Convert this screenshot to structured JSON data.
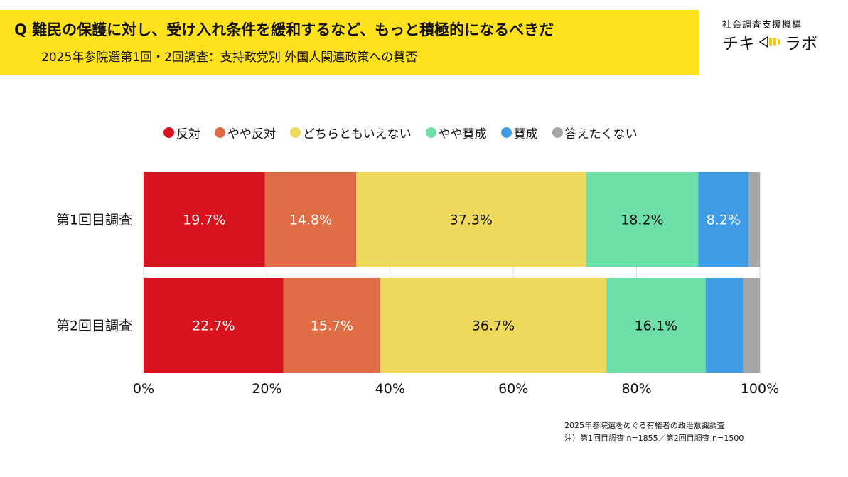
{
  "header": {
    "question": "Q 難民の保護に対し、受け入れ条件を緩和するなど、もっと積極的になるべきだ",
    "subtitle": "2025年参院選第1回・2回調査：支持政党別 外国人関連政策への賛否",
    "org_name": "社会調査支援機構",
    "logo_left": "チキ",
    "logo_right": "ラボ"
  },
  "chart_data": {
    "type": "bar",
    "orientation": "horizontal",
    "stacked": "percent",
    "categories": [
      "第1回目調査",
      "第2回目調査"
    ],
    "series": [
      {
        "name": "反対",
        "color": "#D7141E",
        "values": [
          19.7,
          22.7
        ]
      },
      {
        "name": "やや反対",
        "color": "#DE6C44",
        "values": [
          14.8,
          15.7
        ]
      },
      {
        "name": "どちらともいえない",
        "color": "#EED95C",
        "values": [
          37.3,
          36.7
        ]
      },
      {
        "name": "やや賛成",
        "color": "#6EDFA9",
        "values": [
          18.2,
          16.1
        ]
      },
      {
        "name": "賛成",
        "color": "#3F9BE3",
        "values": [
          8.2,
          6.1
        ]
      },
      {
        "name": "答えたくない",
        "color": "#A6A6A6",
        "values": [
          1.8,
          2.7
        ]
      }
    ],
    "data_labels": [
      [
        "19.7%",
        "14.8%",
        "37.3%",
        "18.2%",
        "8.2%",
        ""
      ],
      [
        "22.7%",
        "15.7%",
        "36.7%",
        "16.1%",
        "",
        ""
      ]
    ],
    "label_colors": [
      "#ffffff",
      "#ffffff",
      "#111111",
      "#111111",
      "#ffffff",
      "#111111"
    ],
    "xlim": [
      0,
      100
    ],
    "x_ticks": [
      "0%",
      "20%",
      "40%",
      "60%",
      "80%",
      "100%"
    ],
    "legend": "top",
    "grid": true
  },
  "source": {
    "line1": "2025年参院選をめぐる有権者の政治意識調査",
    "line2": "注）第1回目調査 n=1855／第2回目調査 n=1500"
  }
}
